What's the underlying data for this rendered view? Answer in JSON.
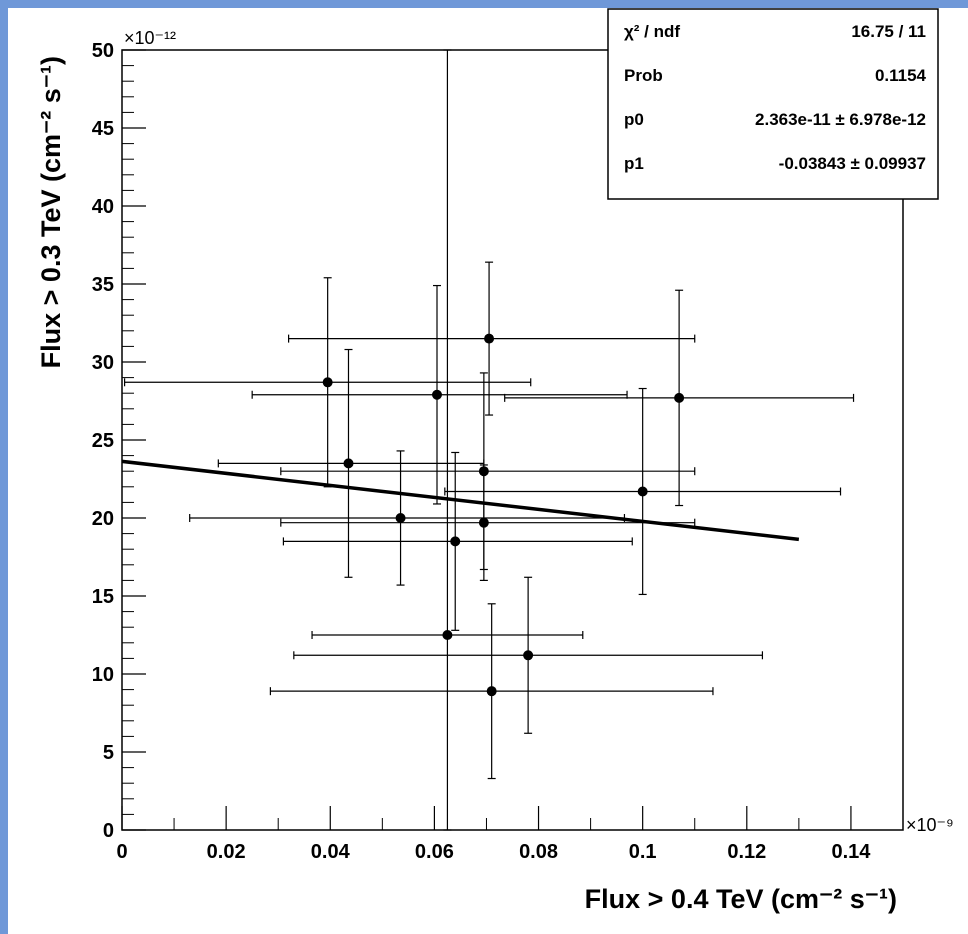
{
  "chart_data": {
    "type": "scatter",
    "xlabel": "Flux > 0.4 TeV (cm⁻² s⁻¹)",
    "ylabel": "Flux > 0.3 TeV (cm⁻² s⁻¹)",
    "x_multiplier": "×10⁻⁹",
    "y_multiplier": "×10⁻¹²",
    "xlim": [
      0,
      0.15
    ],
    "ylim": [
      0,
      50
    ],
    "x_ticks": [
      0,
      0.02,
      0.04,
      0.06,
      0.08,
      0.1,
      0.12,
      0.14
    ],
    "x_tick_labels": [
      "0",
      "0.02",
      "0.04",
      "0.06",
      "0.08",
      "0.1",
      "0.12",
      "0.14"
    ],
    "y_ticks": [
      0,
      5,
      10,
      15,
      20,
      25,
      30,
      35,
      40,
      45,
      50
    ],
    "y_tick_labels": [
      "0",
      "5",
      "10",
      "15",
      "20",
      "25",
      "30",
      "35",
      "40",
      "45",
      "50"
    ],
    "grid": false,
    "points": [
      {
        "x": 0.0395,
        "y": 28.7,
        "xerr_lo": 0.039,
        "xerr_hi": 0.039,
        "yerr": 6.7
      },
      {
        "x": 0.0435,
        "y": 23.5,
        "xerr_lo": 0.025,
        "xerr_hi": 0.026,
        "yerr": 7.3
      },
      {
        "x": 0.0535,
        "y": 20.0,
        "xerr_lo": 0.0405,
        "xerr_hi": 0.043,
        "yerr": 4.3
      },
      {
        "x": 0.0605,
        "y": 27.9,
        "xerr_lo": 0.0355,
        "xerr_hi": 0.0365,
        "yerr": 7.0
      },
      {
        "x": 0.0625,
        "y": 12.5,
        "xerr_lo": 0.026,
        "xerr_hi": 0.026,
        "yerr": 37.5
      },
      {
        "x": 0.064,
        "y": 18.5,
        "xerr_lo": 0.033,
        "xerr_hi": 0.034,
        "yerr": 5.7
      },
      {
        "x": 0.0695,
        "y": 23.0,
        "xerr_lo": 0.039,
        "xerr_hi": 0.0405,
        "yerr": 6.3
      },
      {
        "x": 0.0695,
        "y": 19.7,
        "xerr_lo": 0.039,
        "xerr_hi": 0.0405,
        "yerr": 3.7
      },
      {
        "x": 0.0705,
        "y": 31.5,
        "xerr_lo": 0.0385,
        "xerr_hi": 0.0395,
        "yerr": 4.9
      },
      {
        "x": 0.071,
        "y": 8.9,
        "xerr_lo": 0.0425,
        "xerr_hi": 0.0425,
        "yerr": 5.6
      },
      {
        "x": 0.078,
        "y": 11.2,
        "xerr_lo": 0.045,
        "xerr_hi": 0.045,
        "yerr": 5.0
      },
      {
        "x": 0.1,
        "y": 21.7,
        "xerr_lo": 0.038,
        "xerr_hi": 0.038,
        "yerr": 6.6
      },
      {
        "x": 0.107,
        "y": 27.7,
        "xerr_lo": 0.0335,
        "xerr_hi": 0.0335,
        "yerr": 6.9
      }
    ],
    "fit": {
      "x": [
        0,
        0.13
      ],
      "y": [
        23.63,
        18.63
      ]
    },
    "stats_box": {
      "position": "top-right",
      "rows": [
        {
          "label": "χ² / ndf",
          "value": "16.75 / 11"
        },
        {
          "label": "Prob",
          "value": "0.1154"
        },
        {
          "label": "p0",
          "value": "2.363e-11 ± 6.978e-12"
        },
        {
          "label": "p1",
          "value": "-0.03843 ± 0.09937"
        }
      ]
    }
  }
}
